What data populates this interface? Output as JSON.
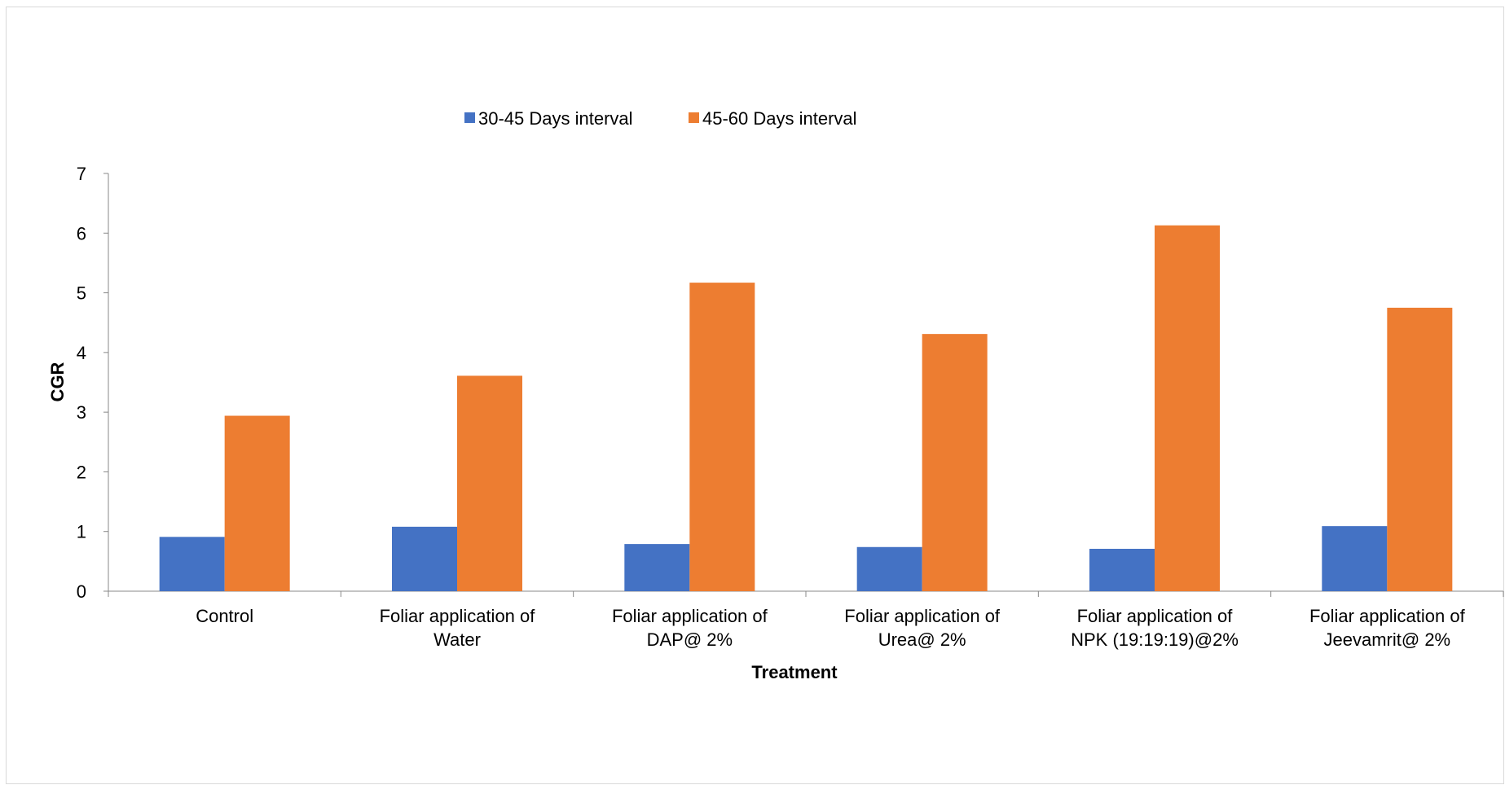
{
  "chart_data": {
    "type": "bar",
    "title": "",
    "xlabel": "Treatment",
    "ylabel": "CGR",
    "ylim": [
      0,
      7
    ],
    "yticks": [
      "0",
      "1",
      "2",
      "3",
      "4",
      "5",
      "6",
      "7"
    ],
    "grid": false,
    "legend_position": "top",
    "categories": [
      [
        "Control"
      ],
      [
        "Foliar application of",
        "Water"
      ],
      [
        "Foliar application of",
        "DAP@ 2%"
      ],
      [
        "Foliar application of",
        "Urea@ 2%"
      ],
      [
        "Foliar application of",
        "NPK (19:19:19)@2%"
      ],
      [
        "Foliar application of",
        "Jeevamrit@ 2%"
      ]
    ],
    "series": [
      {
        "name": "30-45 Days interval",
        "color": "#4472c4",
        "values": [
          0.91,
          1.08,
          0.79,
          0.74,
          0.71,
          1.09
        ]
      },
      {
        "name": "45-60 Days interval",
        "color": "#ed7d31",
        "values": [
          2.94,
          3.61,
          5.17,
          4.31,
          6.13,
          4.75
        ]
      }
    ]
  }
}
